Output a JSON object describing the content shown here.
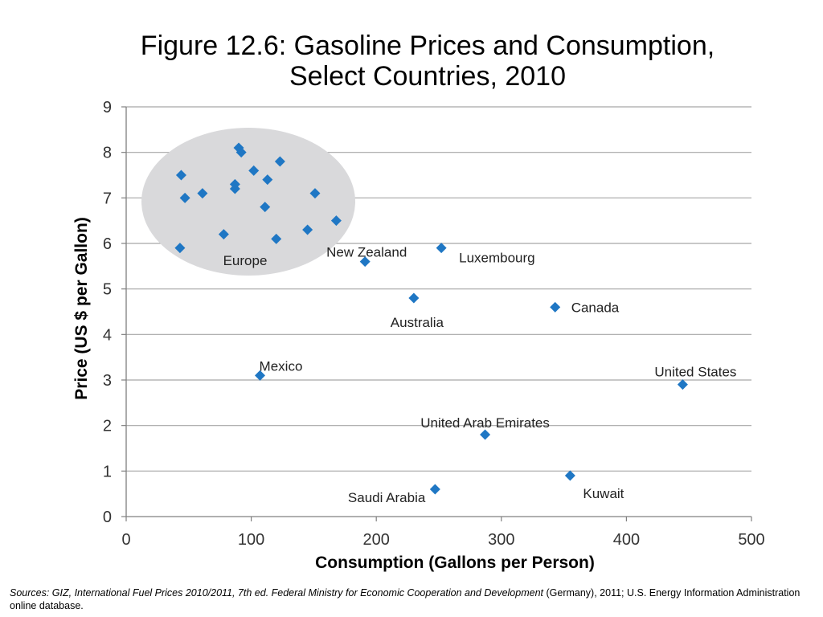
{
  "title": {
    "line1": "Figure 12.6: Gasoline Prices and Consumption,",
    "line2": "Select Countries, 2010"
  },
  "chart_data": {
    "type": "scatter",
    "title": "Figure 12.6: Gasoline Prices and Consumption, Select Countries, 2010",
    "xlabel": "Consumption (Gallons per Person)",
    "ylabel": "Price (US $ per Gallon)",
    "xlim": [
      0,
      500
    ],
    "ylim": [
      0,
      9
    ],
    "x_ticks": [
      "0",
      "100",
      "200",
      "300",
      "400",
      "500"
    ],
    "y_ticks": [
      "0",
      "1",
      "2",
      "3",
      "4",
      "5",
      "6",
      "7",
      "8",
      "9"
    ],
    "grid": "horizontal",
    "marker_color": "#1f77c4",
    "highlight_color": "#d9d9db",
    "group_label": "Europe",
    "points": [
      {
        "x": 44,
        "y": 7.5,
        "label": ""
      },
      {
        "x": 47,
        "y": 7.0,
        "label": ""
      },
      {
        "x": 43,
        "y": 5.9,
        "label": ""
      },
      {
        "x": 61,
        "y": 7.1,
        "label": ""
      },
      {
        "x": 78,
        "y": 6.2,
        "label": ""
      },
      {
        "x": 87,
        "y": 7.2,
        "label": ""
      },
      {
        "x": 87,
        "y": 7.3,
        "label": ""
      },
      {
        "x": 90,
        "y": 8.1,
        "label": ""
      },
      {
        "x": 92,
        "y": 8.0,
        "label": ""
      },
      {
        "x": 102,
        "y": 7.6,
        "label": ""
      },
      {
        "x": 111,
        "y": 6.8,
        "label": ""
      },
      {
        "x": 113,
        "y": 7.4,
        "label": ""
      },
      {
        "x": 120,
        "y": 6.1,
        "label": ""
      },
      {
        "x": 123,
        "y": 7.8,
        "label": ""
      },
      {
        "x": 145,
        "y": 6.3,
        "label": ""
      },
      {
        "x": 151,
        "y": 7.1,
        "label": ""
      },
      {
        "x": 168,
        "y": 6.5,
        "label": ""
      },
      {
        "x": 191,
        "y": 5.6,
        "label": "New Zealand"
      },
      {
        "x": 252,
        "y": 5.9,
        "label": "Luxembourg"
      },
      {
        "x": 230,
        "y": 4.8,
        "label": "Australia"
      },
      {
        "x": 343,
        "y": 4.6,
        "label": "Canada"
      },
      {
        "x": 107,
        "y": 3.1,
        "label": "Mexico"
      },
      {
        "x": 445,
        "y": 2.9,
        "label": "United States"
      },
      {
        "x": 287,
        "y": 1.8,
        "label": "United Arab Emirates"
      },
      {
        "x": 355,
        "y": 0.9,
        "label": "Kuwait"
      },
      {
        "x": 247,
        "y": 0.6,
        "label": "Saudi Arabia"
      }
    ]
  },
  "footnote": {
    "italic": "Sources: GIZ, International Fuel Prices 2010/2011, 7th ed. Federal Ministry for Economic Cooperation and Development",
    "plain": " (Germany), 2011; U.S. Energy Information Administration online database."
  }
}
